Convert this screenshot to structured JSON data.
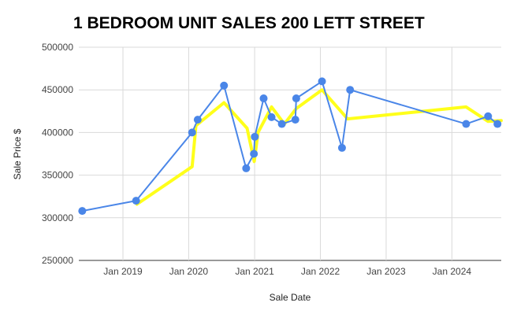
{
  "chart_data": {
    "type": "line",
    "title": "1 BEDROOM UNIT SALES 200 LETT STREET",
    "xlabel": "Sale Date",
    "ylabel": "Sale Price $",
    "ylim": [
      250000,
      500000
    ],
    "yticks": [
      {
        "value": 250000,
        "label": "250000"
      },
      {
        "value": 300000,
        "label": "300000"
      },
      {
        "value": 350000,
        "label": "350000"
      },
      {
        "value": 400000,
        "label": "400000"
      },
      {
        "value": 450000,
        "label": "450000"
      },
      {
        "value": 500000,
        "label": "500000"
      }
    ],
    "xlim": [
      "2018-05-01",
      "2024-10-01"
    ],
    "xticks": [
      {
        "value": "2019-01-01",
        "label": "Jan 2019"
      },
      {
        "value": "2020-01-01",
        "label": "Jan 2020"
      },
      {
        "value": "2021-01-01",
        "label": "Jan 2021"
      },
      {
        "value": "2022-01-01",
        "label": "Jan 2022"
      },
      {
        "value": "2023-01-01",
        "label": "Jan 2023"
      },
      {
        "value": "2024-01-01",
        "label": "Jan 2024"
      }
    ],
    "grid": true,
    "legend": "none",
    "series": [
      {
        "color": "#4a86e8",
        "marker": "circle",
        "points": [
          {
            "x": "2018-05-20",
            "y": 308000
          },
          {
            "x": "2019-03-15",
            "y": 320000
          },
          {
            "x": "2020-01-20",
            "y": 400000
          },
          {
            "x": "2020-02-20",
            "y": 415000
          },
          {
            "x": "2020-07-15",
            "y": 455000
          },
          {
            "x": "2020-11-15",
            "y": 358000
          },
          {
            "x": "2020-12-28",
            "y": 375000
          },
          {
            "x": "2021-01-02",
            "y": 395000
          },
          {
            "x": "2021-02-20",
            "y": 440000
          },
          {
            "x": "2021-04-05",
            "y": 418000
          },
          {
            "x": "2021-06-01",
            "y": 410000
          },
          {
            "x": "2021-08-15",
            "y": 415000
          },
          {
            "x": "2021-08-20",
            "y": 440000
          },
          {
            "x": "2022-01-10",
            "y": 460000
          },
          {
            "x": "2022-05-01",
            "y": 382000
          },
          {
            "x": "2022-06-15",
            "y": 450000
          },
          {
            "x": "2024-03-20",
            "y": 410000
          },
          {
            "x": "2024-07-20",
            "y": 419000
          },
          {
            "x": "2024-09-10",
            "y": 410000
          }
        ]
      },
      {
        "color": "#ffff1a",
        "marker": "none",
        "points": [
          {
            "x": "2019-03-20",
            "y": 316000
          },
          {
            "x": "2020-01-20",
            "y": 360000
          },
          {
            "x": "2020-02-10",
            "y": 408000
          },
          {
            "x": "2020-07-15",
            "y": 435000
          },
          {
            "x": "2020-11-20",
            "y": 405000
          },
          {
            "x": "2020-12-30",
            "y": 366000
          },
          {
            "x": "2021-01-20",
            "y": 400000
          },
          {
            "x": "2021-04-05",
            "y": 430000
          },
          {
            "x": "2021-06-15",
            "y": 410000
          },
          {
            "x": "2021-08-20",
            "y": 428000
          },
          {
            "x": "2022-01-10",
            "y": 450000
          },
          {
            "x": "2022-06-01",
            "y": 416000
          },
          {
            "x": "2024-03-20",
            "y": 430000
          },
          {
            "x": "2024-07-20",
            "y": 413000
          },
          {
            "x": "2024-10-01",
            "y": 414000
          }
        ]
      }
    ]
  }
}
